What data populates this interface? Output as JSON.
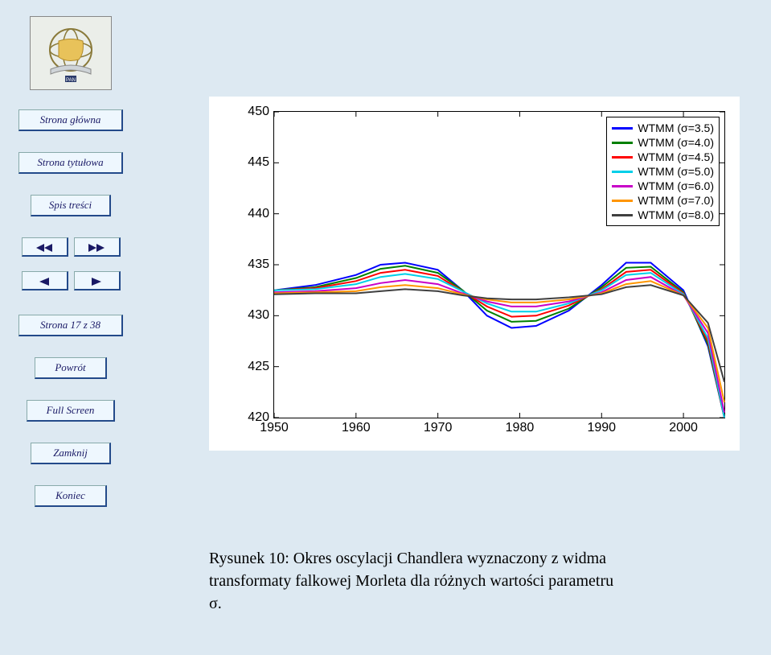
{
  "sidebar": {
    "buttons": {
      "home": "Strona główna",
      "title_page": "Strona tytułowa",
      "toc": "Spis treści",
      "page_of": "Strona 17 z 38",
      "back": "Powrót",
      "fullscreen": "Full Screen",
      "close": "Zamknij",
      "end": "Koniec"
    }
  },
  "caption": "Rysunek 10: Okres oscylacji Chandlera wyznaczony z widma transformaty falkowej Morleta dla różnych wartości parametru σ.",
  "chart": {
    "type": "line",
    "background_color": "#ffffff",
    "axis_color": "#000000",
    "tick_fontsize": 16,
    "legend_fontsize": 14,
    "xlim": [
      1950,
      2005
    ],
    "ylim": [
      420,
      450
    ],
    "yticks": [
      420,
      425,
      430,
      435,
      440,
      445,
      450
    ],
    "xticks": [
      1950,
      1960,
      1970,
      1980,
      1990,
      2000
    ],
    "legend_position": "top-right",
    "line_width": 2,
    "series": [
      {
        "label": "WTMM (σ=3.5)",
        "color": "#0000ff",
        "x": [
          1950,
          1955,
          1960,
          1963,
          1966,
          1970,
          1973,
          1976,
          1979,
          1982,
          1986,
          1990,
          1993,
          1996,
          2000,
          2003,
          2005
        ],
        "y": [
          432.5,
          433.0,
          434.0,
          435.0,
          435.2,
          434.5,
          432.5,
          430.0,
          428.8,
          429.0,
          430.5,
          433.0,
          435.2,
          435.2,
          432.5,
          427.0,
          420.0
        ]
      },
      {
        "label": "WTMM (σ=4.0)",
        "color": "#008000",
        "x": [
          1950,
          1955,
          1960,
          1963,
          1966,
          1970,
          1973,
          1976,
          1979,
          1982,
          1986,
          1990,
          1993,
          1996,
          2000,
          2003,
          2005
        ],
        "y": [
          432.5,
          432.8,
          433.7,
          434.6,
          434.9,
          434.2,
          432.5,
          430.5,
          429.4,
          429.5,
          430.7,
          432.8,
          434.7,
          434.8,
          432.3,
          427.2,
          420.0
        ]
      },
      {
        "label": "WTMM (σ=4.5)",
        "color": "#ff0000",
        "x": [
          1950,
          1955,
          1960,
          1963,
          1966,
          1970,
          1973,
          1976,
          1979,
          1982,
          1986,
          1990,
          1993,
          1996,
          2000,
          2003,
          2005
        ],
        "y": [
          432.5,
          432.7,
          433.4,
          434.2,
          434.5,
          433.9,
          432.4,
          430.9,
          429.9,
          430.0,
          431.0,
          432.6,
          434.3,
          434.5,
          432.2,
          427.5,
          420.0
        ]
      },
      {
        "label": "WTMM (σ=5.0)",
        "color": "#00cfe8",
        "x": [
          1950,
          1955,
          1960,
          1963,
          1966,
          1970,
          1973,
          1976,
          1979,
          1982,
          1986,
          1990,
          1993,
          1996,
          2000,
          2003,
          2005
        ],
        "y": [
          432.5,
          432.6,
          433.1,
          433.8,
          434.1,
          433.6,
          432.4,
          431.2,
          430.4,
          430.4,
          431.2,
          432.5,
          434.0,
          434.2,
          432.1,
          427.8,
          420.0
        ]
      },
      {
        "label": "WTMM (σ=6.0)",
        "color": "#c800c8",
        "x": [
          1950,
          1955,
          1960,
          1963,
          1966,
          1970,
          1973,
          1976,
          1979,
          1982,
          1986,
          1990,
          1993,
          1996,
          2000,
          2003,
          2005
        ],
        "y": [
          432.3,
          432.4,
          432.7,
          433.2,
          433.5,
          433.1,
          432.2,
          431.4,
          430.9,
          430.9,
          431.4,
          432.3,
          433.5,
          433.8,
          432.0,
          428.3,
          420.5
        ]
      },
      {
        "label": "WTMM (σ=7.0)",
        "color": "#ff9500",
        "x": [
          1950,
          1955,
          1960,
          1963,
          1966,
          1970,
          1973,
          1976,
          1979,
          1982,
          1986,
          1990,
          1993,
          1996,
          2000,
          2003,
          2005
        ],
        "y": [
          432.2,
          432.3,
          432.4,
          432.8,
          433.0,
          432.7,
          432.1,
          431.6,
          431.3,
          431.3,
          431.6,
          432.2,
          433.1,
          433.4,
          432.0,
          428.8,
          421.5
        ]
      },
      {
        "label": "WTMM (σ=8.0)",
        "color": "#404040",
        "x": [
          1950,
          1955,
          1960,
          1963,
          1966,
          1970,
          1973,
          1976,
          1979,
          1982,
          1986,
          1990,
          1993,
          1996,
          2000,
          2003,
          2005
        ],
        "y": [
          432.1,
          432.2,
          432.2,
          432.4,
          432.6,
          432.4,
          432.0,
          431.7,
          431.6,
          431.6,
          431.8,
          432.1,
          432.8,
          433.0,
          432.0,
          429.3,
          423.5
        ]
      }
    ]
  }
}
